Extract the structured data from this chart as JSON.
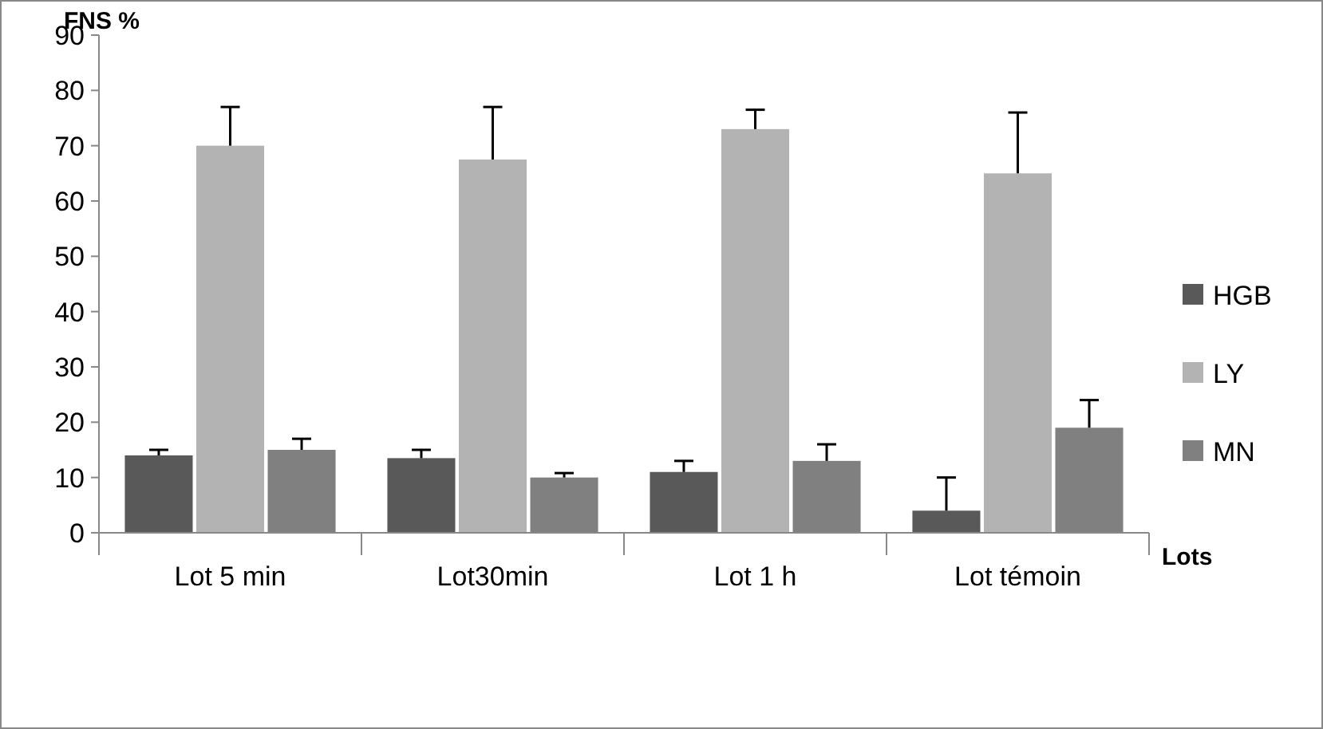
{
  "chart_data": {
    "type": "bar",
    "ylabel": "FNS %",
    "xlabel": "Lots",
    "categories": [
      "Lot 5 min",
      "Lot30min",
      "Lot 1 h",
      "Lot témoin"
    ],
    "series": [
      {
        "name": "HGB",
        "color": "#595959",
        "values": [
          14,
          13.5,
          11,
          4
        ],
        "errors": [
          [
            14,
            15
          ],
          [
            13.5,
            15
          ],
          [
            11,
            13
          ],
          [
            4,
            10
          ]
        ]
      },
      {
        "name": "LY",
        "color": "#b3b3b3",
        "values": [
          70,
          67.5,
          73,
          65
        ],
        "errors": [
          [
            70,
            77
          ],
          [
            67.5,
            77
          ],
          [
            73,
            76.5
          ],
          [
            65,
            76
          ]
        ]
      },
      {
        "name": "MN",
        "color": "#808080",
        "values": [
          15,
          10,
          13,
          19
        ],
        "errors": [
          [
            15,
            17
          ],
          [
            10,
            10.8
          ],
          [
            13,
            16
          ],
          [
            19,
            24
          ]
        ]
      }
    ],
    "ylim": [
      0,
      90
    ],
    "yticks": [
      0,
      10,
      20,
      30,
      40,
      50,
      60,
      70,
      80,
      90
    ],
    "grid": false,
    "legend": "right"
  }
}
